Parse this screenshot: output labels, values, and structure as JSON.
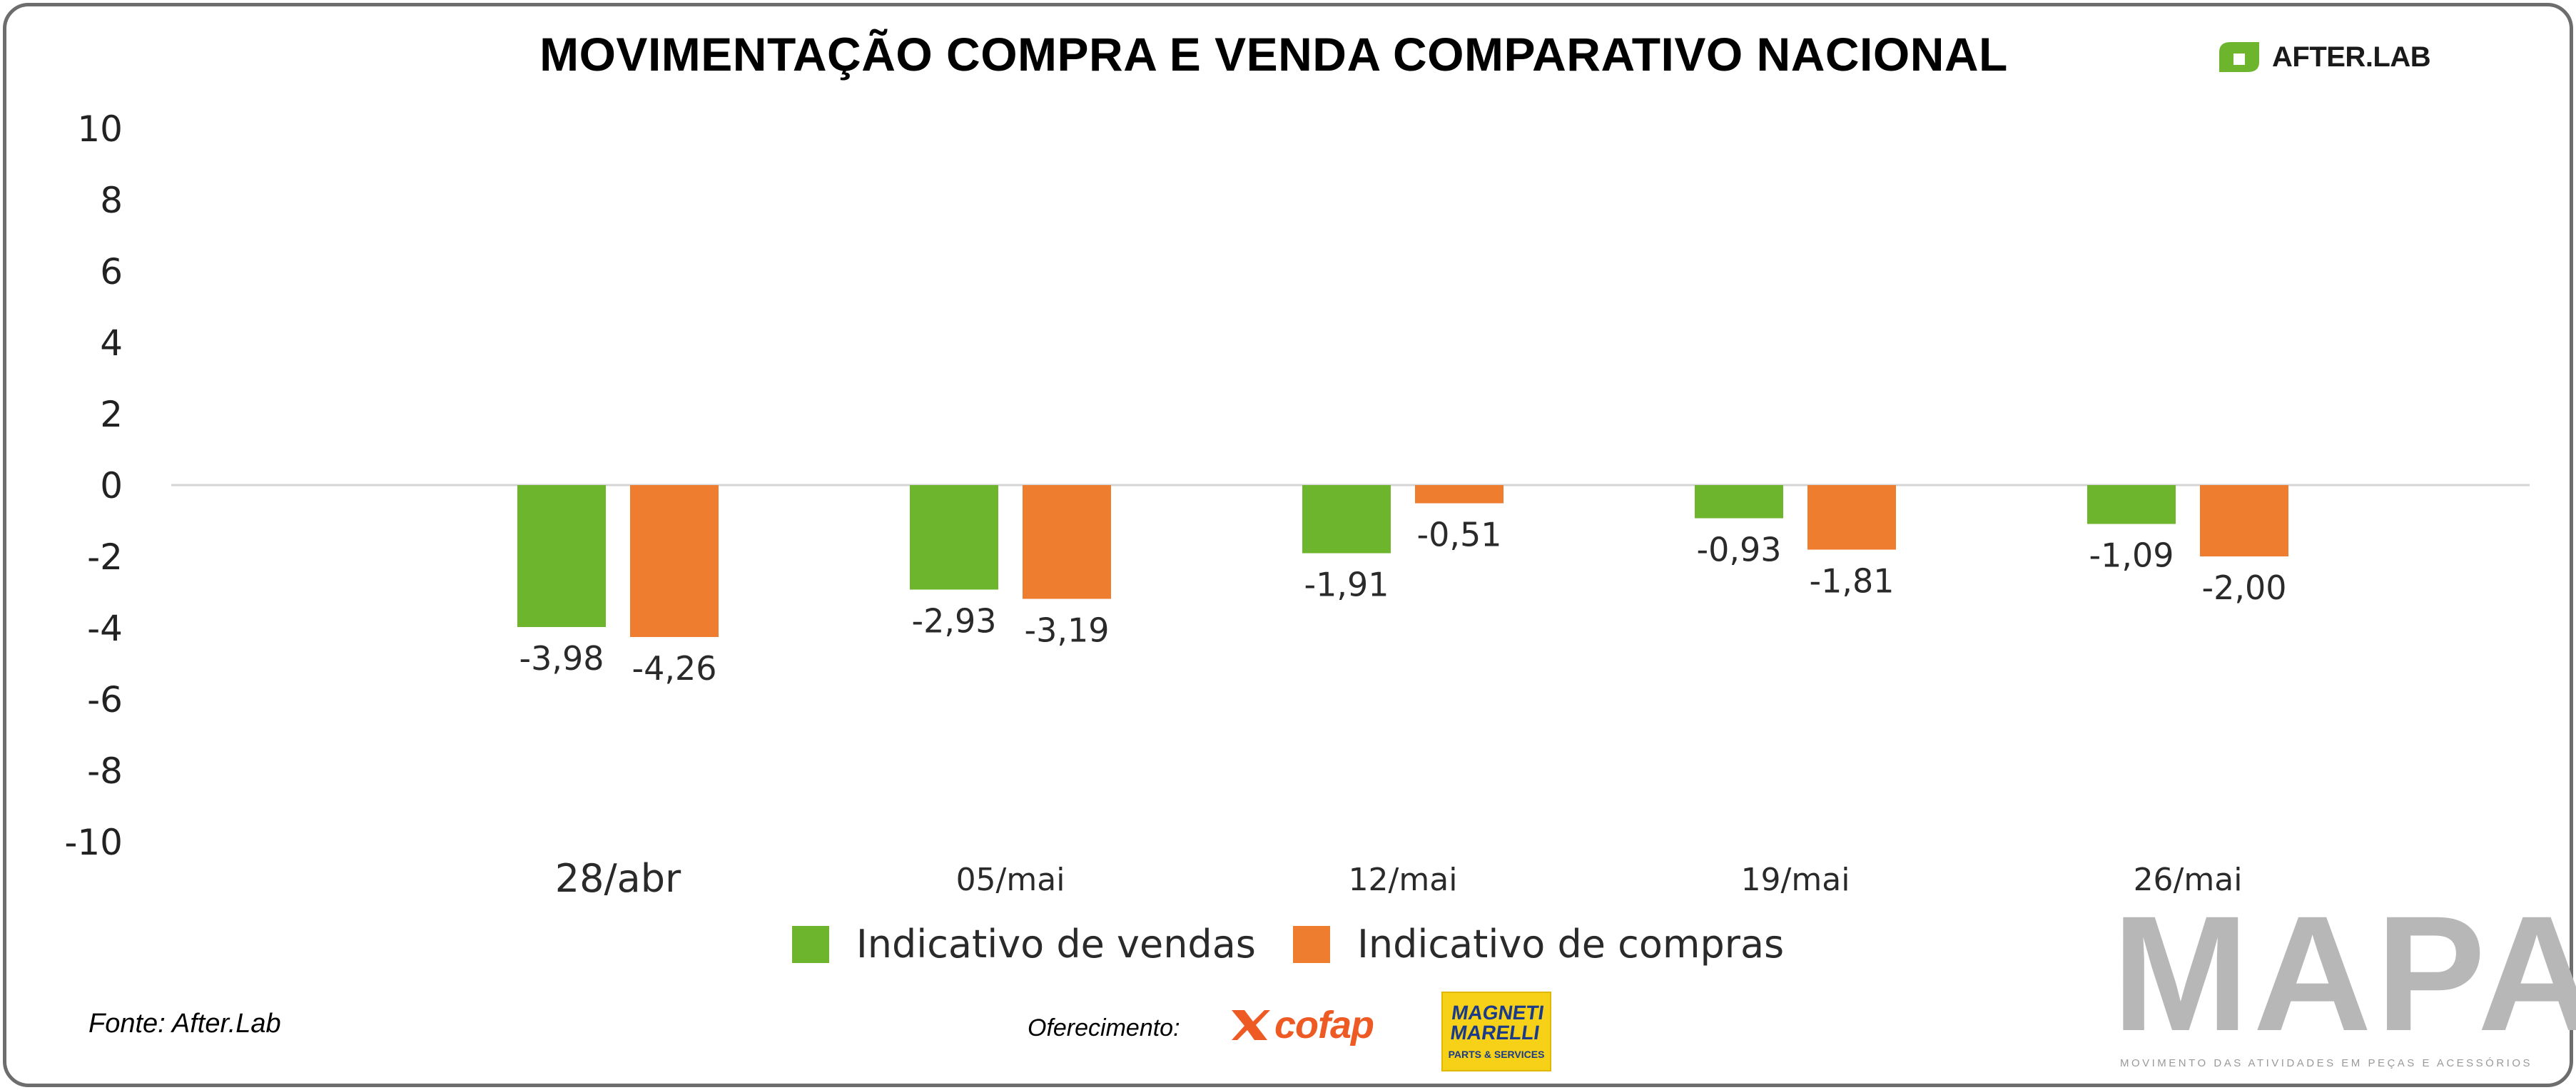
{
  "chart_data": {
    "type": "bar",
    "title": "MOVIMENTAÇÃO COMPRA E VENDA COMPARATIVO NACIONAL",
    "categories": [
      "28/abr",
      "05/mai",
      "12/mai",
      "19/mai",
      "26/mai"
    ],
    "series": [
      {
        "name": "Indicativo de vendas",
        "color": "#6cb52c",
        "values": [
          -3.98,
          -2.93,
          -1.91,
          -0.93,
          -1.09
        ],
        "labels": [
          "-3,98",
          "-2,93",
          "-1,91",
          "-0,93",
          "-1,09"
        ]
      },
      {
        "name": "Indicativo de compras",
        "color": "#ee7d30",
        "values": [
          -4.26,
          -3.19,
          -0.51,
          -1.81,
          -2.0
        ],
        "labels": [
          "-4,26",
          "-3,19",
          "-0,51",
          "-1,81",
          "-2,00"
        ]
      }
    ],
    "yticks": [
      "10",
      "8",
      "6",
      "4",
      "2",
      "0",
      "-2",
      "-4",
      "-6",
      "-8",
      "-10"
    ],
    "ylim": [
      -10,
      10
    ],
    "xlabel": "",
    "ylabel": "",
    "legend": "bottom"
  },
  "footer": {
    "source": "Fonte: After.Lab",
    "sponsor_label": "Oferecimento:"
  },
  "logos": {
    "afterlab": "AFTER.LAB",
    "cofap": "cofap",
    "magneti_line1": "MAGNETI MARELLI",
    "magneti_line2": "PARTS & SERVICES",
    "mapa": "MAPA",
    "mapa_tagline": "MOVIMENTO DAS ATIVIDADES EM PEÇAS E ACESSÓRIOS"
  }
}
